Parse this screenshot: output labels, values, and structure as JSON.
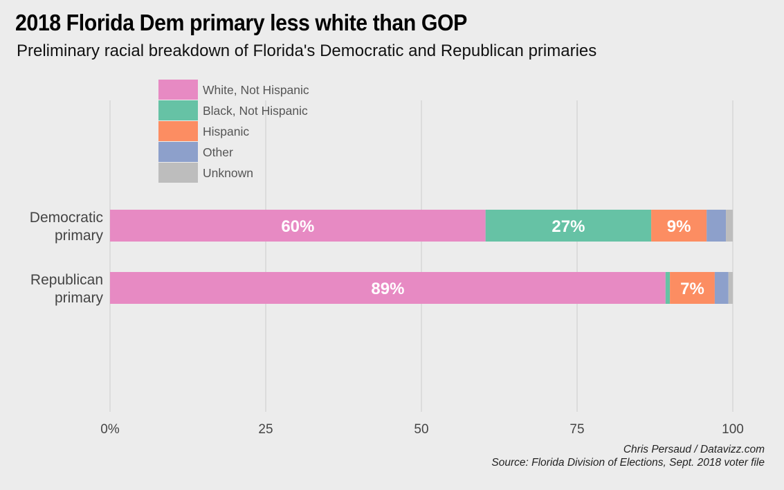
{
  "title": "2018 Florida Dem primary less white than GOP",
  "subtitle": "Preliminary racial breakdown of Florida's Democratic and Republican primaries",
  "credit_author": "Chris Persaud / Datavizz.com",
  "credit_source": "Source: Florida Division of Elections, Sept. 2018 voter file",
  "chart_data": {
    "type": "bar",
    "orientation": "horizontal",
    "stacked": true,
    "categories": [
      "Democratic primary",
      "Republican primary"
    ],
    "category_lines": [
      [
        "Democratic",
        "primary"
      ],
      [
        "Republican",
        "primary"
      ]
    ],
    "series": [
      {
        "name": "White, Not Hispanic",
        "color": "#e78ac3",
        "values": [
          60.3,
          89.2
        ],
        "labels": [
          "60%",
          "89%"
        ]
      },
      {
        "name": "Black, Not Hispanic",
        "color": "#66c2a5",
        "values": [
          26.6,
          0.7
        ],
        "labels": [
          "27%",
          ""
        ]
      },
      {
        "name": "Hispanic",
        "color": "#fc8d62",
        "values": [
          8.9,
          7.2
        ],
        "labels": [
          "9%",
          "7%"
        ]
      },
      {
        "name": "Other",
        "color": "#8da0cb",
        "values": [
          3.1,
          2.2
        ],
        "labels": [
          "",
          ""
        ]
      },
      {
        "name": "Unknown",
        "color": "#bdbdbd",
        "values": [
          1.1,
          0.7
        ],
        "labels": [
          "",
          ""
        ]
      }
    ],
    "xlim": [
      0,
      100
    ],
    "xticks": [
      0,
      25,
      50,
      75,
      100
    ],
    "xtick_labels": [
      "0%",
      "25",
      "50",
      "75",
      "100"
    ],
    "grid": true,
    "legend_position": "top-left"
  }
}
